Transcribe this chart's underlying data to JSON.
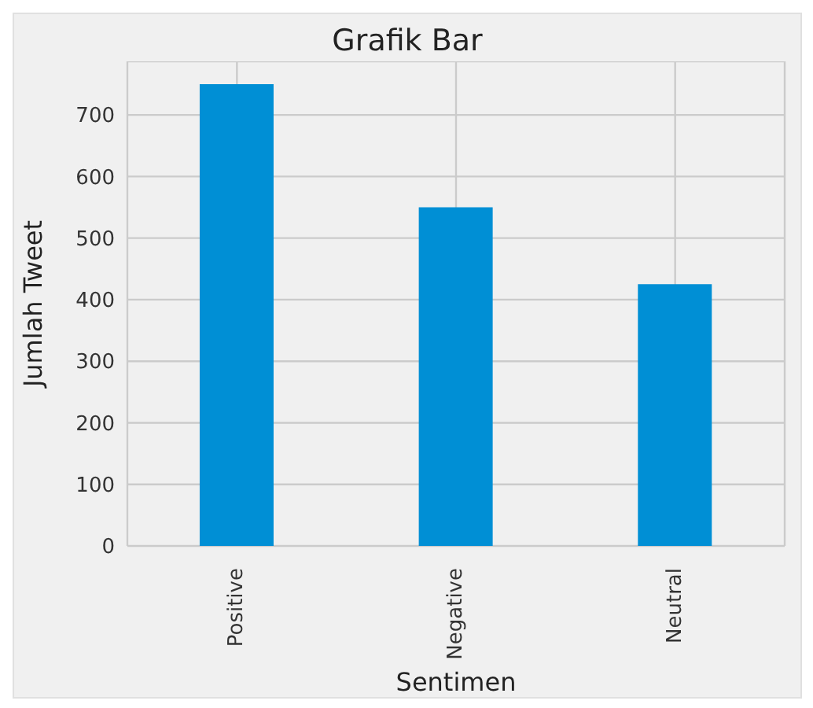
{
  "chart_data": {
    "type": "bar",
    "title": "Grafik Bar",
    "xlabel": "Sentimen",
    "ylabel": "Jumlah Tweet",
    "categories": [
      "Positive",
      "Negative",
      "Neutral"
    ],
    "values": [
      750,
      550,
      425
    ],
    "color": "#008fd5",
    "ylim": [
      0,
      787
    ],
    "yticks": [
      0,
      100,
      200,
      300,
      400,
      500,
      600,
      700
    ],
    "grid": true
  }
}
